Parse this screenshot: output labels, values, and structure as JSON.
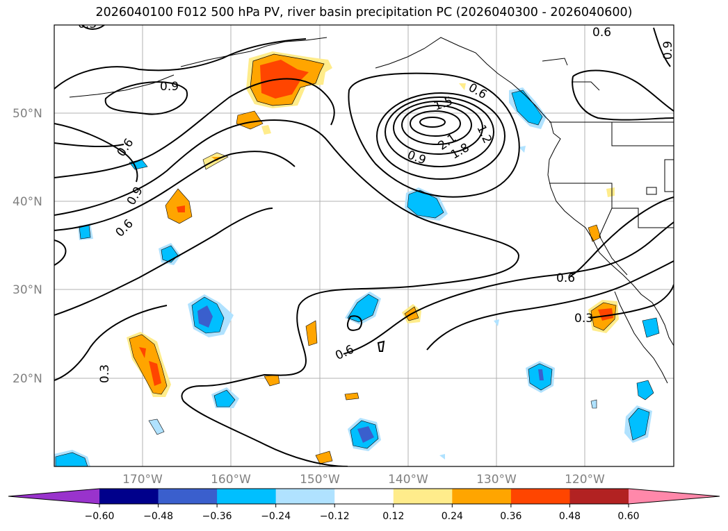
{
  "title": "2026040100 F012 500 hPa PV, river basin precipitation PC (2026040300 - 2026040600)",
  "lat_labels": [
    "50°N",
    "40°N",
    "30°N",
    "20°N"
  ],
  "lon_labels": [
    "170°W",
    "160°W",
    "150°W",
    "140°W",
    "130°W",
    "120°W"
  ],
  "contour_labels": [
    "0.9",
    "0.6",
    "0.9",
    "0.6",
    "0.3",
    "1.5",
    "1.2",
    "2.1",
    "1.8",
    "0.9",
    "0.6",
    "0.6",
    "0.3",
    "0.6",
    "0.3",
    "0.9",
    "0.6"
  ],
  "colorbar": {
    "ticks": [
      "−0.60",
      "−0.48",
      "−0.36",
      "−0.24",
      "−0.12",
      "0.12",
      "0.24",
      "0.36",
      "0.48",
      "0.60"
    ],
    "colors": [
      "#9933cc",
      "#00008b",
      "#3a5fcd",
      "#00bfff",
      "#b0e2ff",
      "#ffffff",
      "#ffec8b",
      "#ffa500",
      "#ff4500",
      "#b22222",
      "#ff88aa"
    ]
  }
}
